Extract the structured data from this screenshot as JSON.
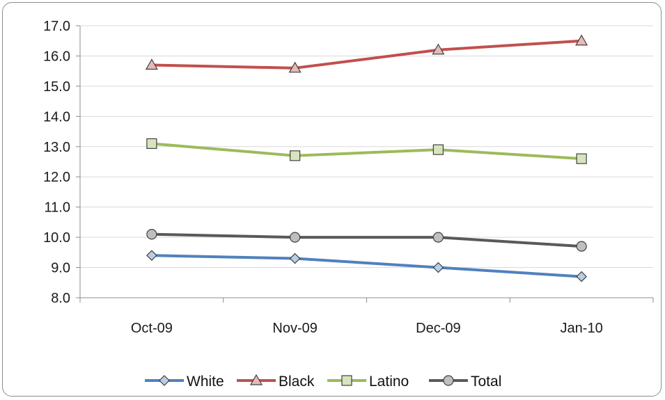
{
  "chart_data": {
    "type": "line",
    "categories": [
      "Oct-09",
      "Nov-09",
      "Dec-09",
      "Jan-10"
    ],
    "series": [
      {
        "name": "White",
        "values": [
          9.4,
          9.3,
          9.0,
          8.7
        ],
        "color": "#4f81bd",
        "marker": "diamond",
        "marker_fill": "#b9cde5"
      },
      {
        "name": "Black",
        "values": [
          15.7,
          15.6,
          16.2,
          16.5
        ],
        "color": "#c0504d",
        "marker": "triangle",
        "marker_fill": "#e6b9b8"
      },
      {
        "name": "Latino",
        "values": [
          13.1,
          12.7,
          12.9,
          12.6
        ],
        "color": "#9bbb59",
        "marker": "square",
        "marker_fill": "#d7e4bd"
      },
      {
        "name": "Total",
        "values": [
          10.1,
          10.0,
          10.0,
          9.7
        ],
        "color": "#595959",
        "marker": "circle",
        "marker_fill": "#bfbfbf"
      }
    ],
    "y_ticks": [
      "8.0",
      "9.0",
      "10.0",
      "11.0",
      "12.0",
      "13.0",
      "14.0",
      "15.0",
      "16.0",
      "17.0"
    ],
    "ylim": [
      8.0,
      17.0
    ],
    "title": "",
    "xlabel": "",
    "ylabel": "",
    "grid": true,
    "legend_position": "bottom"
  }
}
